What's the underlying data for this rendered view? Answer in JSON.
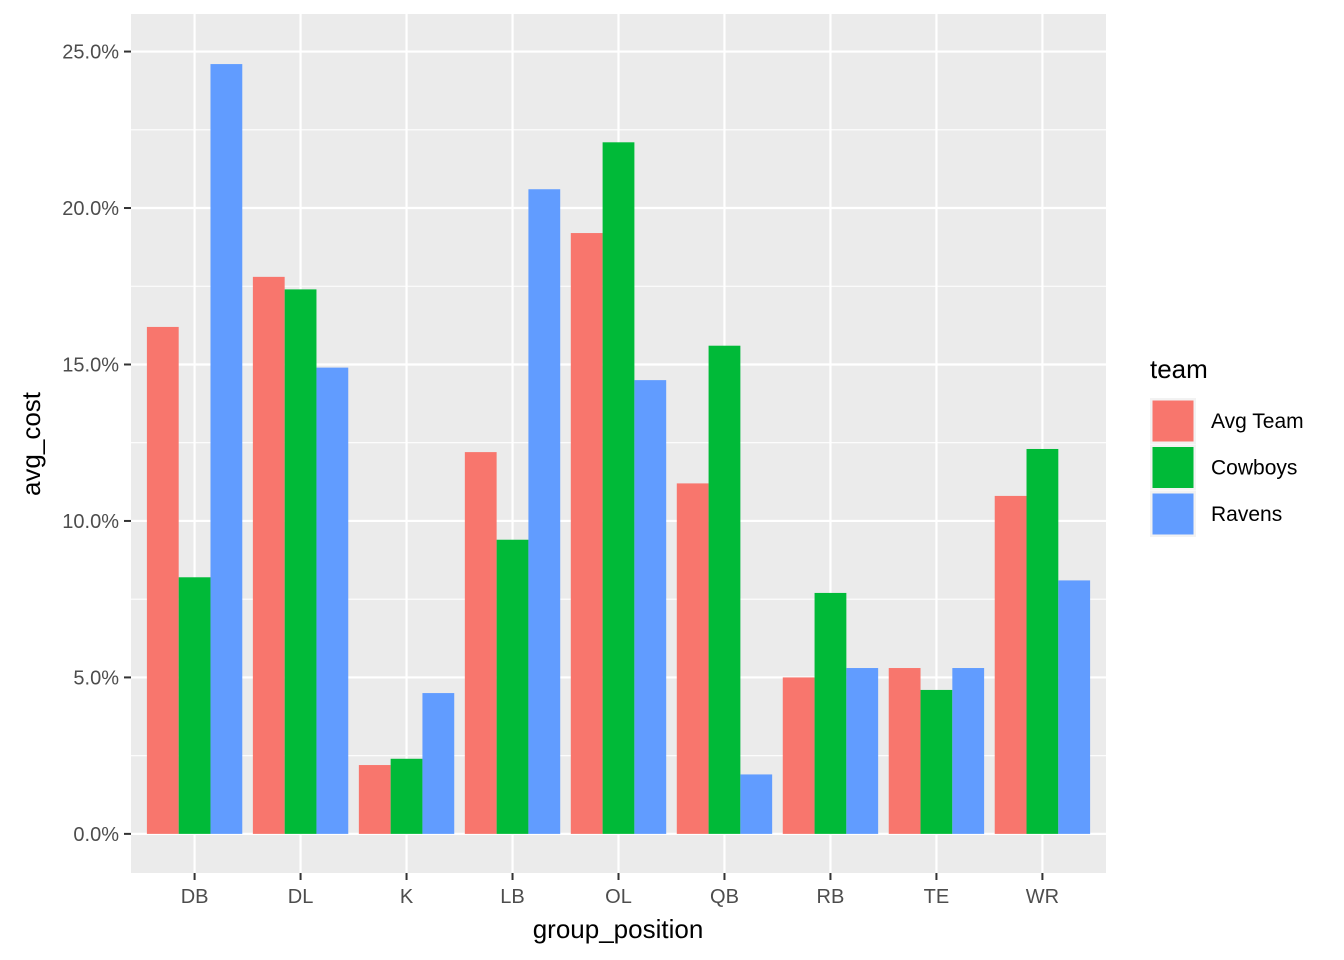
{
  "chart_data": {
    "type": "bar",
    "xlabel": "group_position",
    "ylabel": "avg_cost",
    "categories": [
      "DB",
      "DL",
      "K",
      "LB",
      "OL",
      "QB",
      "RB",
      "TE",
      "WR"
    ],
    "series": [
      {
        "name": "Avg Team",
        "color": "#F8766D",
        "values": [
          16.2,
          17.8,
          2.2,
          12.2,
          19.2,
          11.2,
          5.0,
          5.3,
          10.8
        ]
      },
      {
        "name": "Cowboys",
        "color": "#00BA38",
        "values": [
          8.2,
          17.4,
          2.4,
          9.4,
          22.1,
          15.6,
          7.7,
          4.6,
          12.3
        ]
      },
      {
        "name": "Ravens",
        "color": "#619CFF",
        "values": [
          24.6,
          14.9,
          4.5,
          20.6,
          14.5,
          1.9,
          5.3,
          5.3,
          8.1
        ]
      }
    ],
    "yticks": [
      0,
      5,
      10,
      15,
      20,
      25
    ],
    "ytick_labels": [
      "0.0%",
      "5.0%",
      "10.0%",
      "15.0%",
      "20.0%",
      "25.0%"
    ],
    "ylim": [
      -1.25,
      26.2
    ],
    "grid": true,
    "legend": {
      "title": "team",
      "position": "right"
    },
    "panel_background": "#EBEBEB",
    "grid_color": "#FFFFFF"
  }
}
